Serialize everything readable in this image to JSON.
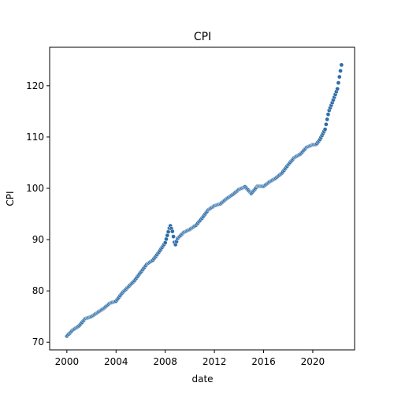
{
  "chart_data": {
    "type": "scatter",
    "title": "CPI",
    "xlabel": "date",
    "ylabel": "CPI",
    "x_ticks": [
      "2000",
      "2004",
      "2008",
      "2012",
      "2016",
      "2020"
    ],
    "y_ticks": [
      "70",
      "80",
      "90",
      "100",
      "110",
      "120"
    ],
    "xlim": [
      1998.6,
      2023.4
    ],
    "ylim": [
      68.5,
      127.5
    ],
    "grid": false,
    "marker_color": "#2f6ea8",
    "marker_edge_color": "#ffffff",
    "x_anchors": [
      2000.0,
      2000.5,
      2001.0,
      2001.5,
      2002.0,
      2002.5,
      2003.0,
      2003.5,
      2004.0,
      2004.5,
      2005.0,
      2005.5,
      2006.0,
      2006.5,
      2007.0,
      2007.5,
      2008.0,
      2008.4,
      2008.6,
      2008.8,
      2009.0,
      2009.5,
      2010.0,
      2010.5,
      2011.0,
      2011.5,
      2012.0,
      2012.5,
      2013.0,
      2013.5,
      2014.0,
      2014.5,
      2015.0,
      2015.5,
      2016.0,
      2016.5,
      2017.0,
      2017.5,
      2018.0,
      2018.5,
      2019.0,
      2019.5,
      2020.0,
      2020.3,
      2020.6,
      2021.0,
      2021.3,
      2021.6,
      2022.0,
      2022.4
    ],
    "y_anchors": [
      71.2,
      72.4,
      73.2,
      74.6,
      75.0,
      75.8,
      76.6,
      77.6,
      78.0,
      79.6,
      80.8,
      82.0,
      83.6,
      85.2,
      86.0,
      87.6,
      89.4,
      92.8,
      91.5,
      88.8,
      90.2,
      91.4,
      92.0,
      92.8,
      94.2,
      95.8,
      96.6,
      97.0,
      98.0,
      98.8,
      99.8,
      100.3,
      99.0,
      100.4,
      100.4,
      101.3,
      102.0,
      103.0,
      104.6,
      106.0,
      106.7,
      108.0,
      108.5,
      108.6,
      109.6,
      111.5,
      115.0,
      116.8,
      119.4,
      125.0
    ],
    "points_per_year": 12
  }
}
